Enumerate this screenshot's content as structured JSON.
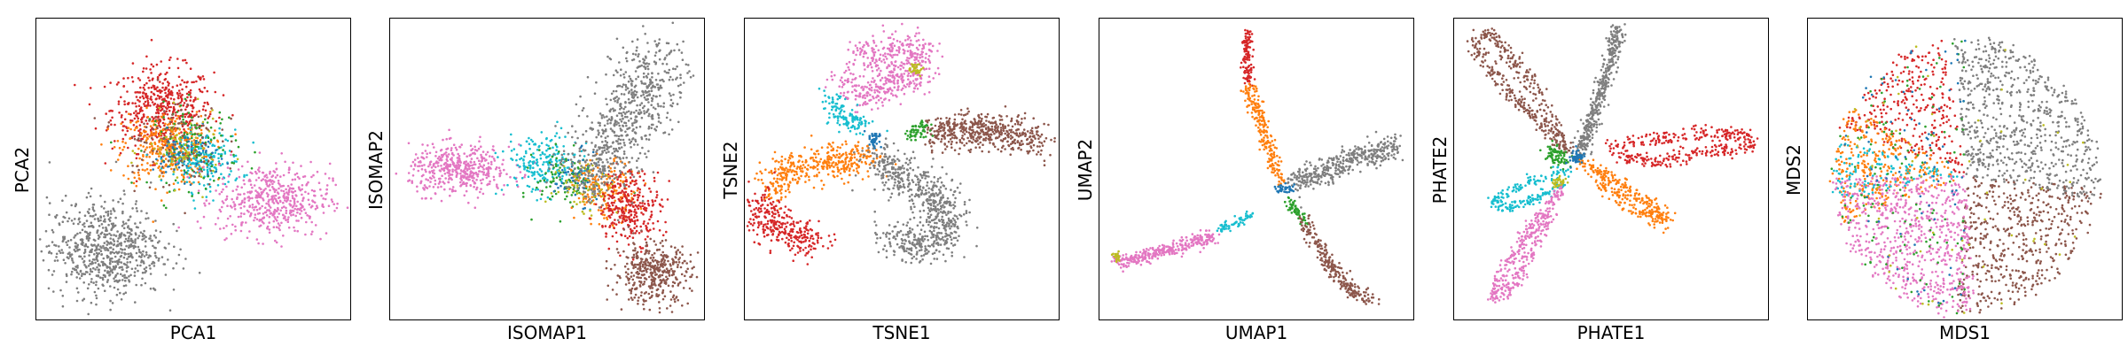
{
  "figure": {
    "panel_count": 6,
    "colors": {
      "blue": "#1f77b4",
      "orange": "#ff7f0e",
      "green": "#2ca02c",
      "red": "#d62728",
      "brown": "#8c564b",
      "pink": "#e377c2",
      "gray": "#7f7f7f",
      "olive": "#bcbd22",
      "cyan": "#17becf"
    }
  },
  "chart_data": [
    {
      "type": "scatter",
      "xlabel": "PCA1",
      "ylabel": "PCA2",
      "grid": false,
      "ticks_visible": false,
      "xlim": [
        0,
        1
      ],
      "ylim": [
        0,
        1
      ],
      "clusters": [
        {
          "color": "red",
          "center": [
            0.4,
            0.7
          ],
          "spread": [
            0.08,
            0.07
          ],
          "count": 500
        },
        {
          "color": "orange",
          "center": [
            0.41,
            0.57
          ],
          "spread": [
            0.07,
            0.06
          ],
          "count": 350
        },
        {
          "color": "cyan",
          "center": [
            0.53,
            0.53
          ],
          "spread": [
            0.06,
            0.05
          ],
          "count": 200
        },
        {
          "color": "green",
          "center": [
            0.5,
            0.58
          ],
          "spread": [
            0.07,
            0.07
          ],
          "count": 120
        },
        {
          "color": "blue",
          "center": [
            0.47,
            0.55
          ],
          "spread": [
            0.05,
            0.04
          ],
          "count": 80
        },
        {
          "color": "olive",
          "center": [
            0.46,
            0.56
          ],
          "spread": [
            0.06,
            0.06
          ],
          "count": 80
        },
        {
          "color": "pink",
          "center": [
            0.75,
            0.4
          ],
          "spread": [
            0.09,
            0.06
          ],
          "count": 500
        },
        {
          "color": "gray",
          "center": [
            0.22,
            0.24
          ],
          "spread": [
            0.09,
            0.08
          ],
          "count": 700
        },
        {
          "color": "brown",
          "center": [
            0.42,
            0.6
          ],
          "spread": [
            0.08,
            0.08
          ],
          "count": 100
        }
      ]
    },
    {
      "type": "scatter",
      "xlabel": "ISOMAP1",
      "ylabel": "ISOMAP2",
      "grid": false,
      "ticks_visible": false,
      "xlim": [
        0,
        1
      ],
      "ylim": [
        0,
        1
      ],
      "clusters": [
        {
          "color": "pink",
          "center": [
            0.22,
            0.5
          ],
          "spread": [
            0.08,
            0.04
          ],
          "count": 450
        },
        {
          "color": "cyan",
          "center": [
            0.48,
            0.52
          ],
          "spread": [
            0.06,
            0.05
          ],
          "count": 200
        },
        {
          "color": "green",
          "center": [
            0.56,
            0.47
          ],
          "spread": [
            0.05,
            0.05
          ],
          "count": 100
        },
        {
          "color": "blue",
          "center": [
            0.6,
            0.47
          ],
          "spread": [
            0.04,
            0.04
          ],
          "count": 70
        },
        {
          "color": "orange",
          "center": [
            0.68,
            0.43
          ],
          "spread": [
            0.05,
            0.05
          ],
          "count": 180
        },
        {
          "color": "red",
          "center": [
            0.76,
            0.38
          ],
          "spread": [
            0.05,
            0.06
          ],
          "count": 300
        },
        {
          "color": "brown",
          "center": [
            0.83,
            0.16
          ],
          "spread": [
            0.06,
            0.05
          ],
          "count": 400
        },
        {
          "color": "olive",
          "center": [
            0.62,
            0.45
          ],
          "spread": [
            0.05,
            0.05
          ],
          "count": 60
        }
      ],
      "arms": [
        {
          "color": "gray",
          "from": [
            0.62,
            0.46
          ],
          "to": [
            0.87,
            0.87
          ],
          "width": 0.06,
          "count": 700
        }
      ]
    },
    {
      "type": "scatter",
      "xlabel": "TSNE1",
      "ylabel": "TSNE2",
      "grid": false,
      "ticks_visible": false,
      "xlim": [
        0,
        1
      ],
      "ylim": [
        0,
        1
      ],
      "arms": [
        {
          "color": "pink",
          "path": [
            [
              0.37,
              0.87
            ],
            [
              0.48,
              0.91
            ],
            [
              0.57,
              0.88
            ],
            [
              0.52,
              0.8
            ],
            [
              0.4,
              0.76
            ],
            [
              0.3,
              0.8
            ]
          ],
          "width": 0.03,
          "count": 500
        },
        {
          "color": "cyan",
          "path": [
            [
              0.28,
              0.74
            ],
            [
              0.3,
              0.68
            ],
            [
              0.38,
              0.64
            ]
          ],
          "width": 0.02,
          "count": 120
        },
        {
          "color": "brown",
          "path": [
            [
              0.6,
              0.62
            ],
            [
              0.74,
              0.63
            ],
            [
              0.86,
              0.62
            ],
            [
              0.93,
              0.59
            ]
          ],
          "width": 0.03,
          "count": 500
        },
        {
          "color": "green",
          "path": [
            [
              0.52,
              0.62
            ],
            [
              0.57,
              0.63
            ]
          ],
          "width": 0.015,
          "count": 60
        },
        {
          "color": "orange",
          "path": [
            [
              0.4,
              0.54
            ],
            [
              0.25,
              0.53
            ],
            [
              0.12,
              0.49
            ],
            [
              0.08,
              0.43
            ]
          ],
          "width": 0.03,
          "count": 400
        },
        {
          "color": "red",
          "path": [
            [
              0.05,
              0.4
            ],
            [
              0.07,
              0.33
            ],
            [
              0.14,
              0.28
            ],
            [
              0.22,
              0.27
            ]
          ],
          "width": 0.03,
          "count": 300
        },
        {
          "color": "gray",
          "path": [
            [
              0.42,
              0.53
            ],
            [
              0.52,
              0.46
            ],
            [
              0.62,
              0.4
            ],
            [
              0.64,
              0.3
            ],
            [
              0.57,
              0.25
            ],
            [
              0.46,
              0.28
            ]
          ],
          "width": 0.035,
          "count": 700
        },
        {
          "color": "blue",
          "path": [
            [
              0.4,
              0.61
            ],
            [
              0.42,
              0.59
            ]
          ],
          "width": 0.01,
          "count": 40
        },
        {
          "color": "olive",
          "path": [
            [
              0.53,
              0.83
            ],
            [
              0.55,
              0.84
            ]
          ],
          "width": 0.01,
          "count": 30
        }
      ]
    },
    {
      "type": "scatter",
      "xlabel": "UMAP1",
      "ylabel": "UMAP2",
      "grid": false,
      "ticks_visible": false,
      "xlim": [
        0,
        1
      ],
      "ylim": [
        0,
        1
      ],
      "arms": [
        {
          "color": "red",
          "path": [
            [
              0.47,
              0.95
            ],
            [
              0.47,
              0.86
            ],
            [
              0.47,
              0.78
            ]
          ],
          "width": 0.008,
          "count": 120
        },
        {
          "color": "orange",
          "path": [
            [
              0.47,
              0.78
            ],
            [
              0.51,
              0.66
            ],
            [
              0.55,
              0.54
            ],
            [
              0.57,
              0.46
            ]
          ],
          "width": 0.012,
          "count": 220
        },
        {
          "color": "gray",
          "path": [
            [
              0.62,
              0.46
            ],
            [
              0.72,
              0.5
            ],
            [
              0.84,
              0.55
            ],
            [
              0.94,
              0.57
            ]
          ],
          "width": 0.02,
          "count": 400
        },
        {
          "color": "blue",
          "path": [
            [
              0.57,
              0.44
            ],
            [
              0.61,
              0.44
            ]
          ],
          "width": 0.008,
          "count": 40
        },
        {
          "color": "green",
          "path": [
            [
              0.6,
              0.4
            ],
            [
              0.65,
              0.33
            ]
          ],
          "width": 0.008,
          "count": 60
        },
        {
          "color": "brown",
          "path": [
            [
              0.65,
              0.33
            ],
            [
              0.72,
              0.2
            ],
            [
              0.8,
              0.1
            ],
            [
              0.86,
              0.07
            ]
          ],
          "width": 0.012,
          "count": 250
        },
        {
          "color": "cyan",
          "path": [
            [
              0.48,
              0.35
            ],
            [
              0.38,
              0.3
            ]
          ],
          "width": 0.008,
          "count": 60
        },
        {
          "color": "pink",
          "path": [
            [
              0.36,
              0.28
            ],
            [
              0.23,
              0.24
            ],
            [
              0.12,
              0.21
            ],
            [
              0.05,
              0.2
            ]
          ],
          "width": 0.012,
          "count": 300
        },
        {
          "color": "olive",
          "path": [
            [
              0.05,
              0.22
            ],
            [
              0.06,
              0.2
            ]
          ],
          "width": 0.006,
          "count": 20
        }
      ]
    },
    {
      "type": "scatter",
      "xlabel": "PHATE1",
      "ylabel": "PHATE2",
      "grid": false,
      "ticks_visible": false,
      "xlim": [
        0,
        1
      ],
      "ylim": [
        0,
        1
      ],
      "arms": [
        {
          "color": "brown",
          "path": [
            [
              0.36,
              0.56
            ],
            [
              0.25,
              0.68
            ],
            [
              0.14,
              0.8
            ],
            [
              0.06,
              0.91
            ],
            [
              0.1,
              0.96
            ],
            [
              0.18,
              0.88
            ],
            [
              0.27,
              0.75
            ],
            [
              0.33,
              0.63
            ],
            [
              0.36,
              0.56
            ]
          ],
          "width": 0.012,
          "count": 400
        },
        {
          "color": "gray",
          "path": [
            [
              0.4,
              0.56
            ],
            [
              0.45,
              0.7
            ],
            [
              0.49,
              0.85
            ],
            [
              0.52,
              0.97
            ]
          ],
          "width": 0.012,
          "count": 400
        },
        {
          "color": "red",
          "path": [
            [
              0.48,
              0.57
            ],
            [
              0.62,
              0.6
            ],
            [
              0.78,
              0.62
            ],
            [
              0.93,
              0.62
            ],
            [
              0.95,
              0.57
            ],
            [
              0.8,
              0.56
            ],
            [
              0.66,
              0.53
            ],
            [
              0.52,
              0.54
            ]
          ],
          "width": 0.012,
          "count": 350
        },
        {
          "color": "orange",
          "path": [
            [
              0.4,
              0.53
            ],
            [
              0.5,
              0.47
            ],
            [
              0.6,
              0.4
            ],
            [
              0.68,
              0.33
            ],
            [
              0.63,
              0.34
            ],
            [
              0.55,
              0.38
            ],
            [
              0.45,
              0.46
            ]
          ],
          "width": 0.012,
          "count": 300
        },
        {
          "color": "cyan",
          "path": [
            [
              0.36,
              0.5
            ],
            [
              0.22,
              0.45
            ],
            [
              0.12,
              0.4
            ],
            [
              0.15,
              0.37
            ],
            [
              0.27,
              0.41
            ],
            [
              0.35,
              0.46
            ]
          ],
          "width": 0.01,
          "count": 200
        },
        {
          "color": "pink",
          "path": [
            [
              0.34,
              0.44
            ],
            [
              0.24,
              0.3
            ],
            [
              0.16,
              0.18
            ],
            [
              0.12,
              0.08
            ],
            [
              0.18,
              0.1
            ],
            [
              0.24,
              0.22
            ],
            [
              0.3,
              0.35
            ]
          ],
          "width": 0.012,
          "count": 350
        },
        {
          "color": "green",
          "path": [
            [
              0.3,
              0.56
            ],
            [
              0.36,
              0.53
            ]
          ],
          "width": 0.015,
          "count": 80
        },
        {
          "color": "blue",
          "path": [
            [
              0.38,
              0.53
            ],
            [
              0.4,
              0.55
            ]
          ],
          "width": 0.01,
          "count": 50
        },
        {
          "color": "olive",
          "path": [
            [
              0.32,
              0.45
            ],
            [
              0.34,
              0.47
            ]
          ],
          "width": 0.01,
          "count": 30
        }
      ]
    },
    {
      "type": "scatter",
      "xlabel": "MDS1",
      "ylabel": "MDS2",
      "grid": false,
      "ticks_visible": false,
      "xlim": [
        0,
        1
      ],
      "ylim": [
        0,
        1
      ],
      "disc": {
        "center": [
          0.5,
          0.48
        ],
        "radius": [
          0.42,
          0.46
        ]
      },
      "sectors": [
        {
          "color": "red",
          "from_deg": 100,
          "to_deg": 160,
          "count": 300
        },
        {
          "color": "orange",
          "from_deg": 150,
          "to_deg": 200,
          "count": 300
        },
        {
          "color": "gray",
          "from_deg": -10,
          "to_deg": 95,
          "count": 700
        },
        {
          "color": "brown",
          "from_deg": -95,
          "to_deg": -5,
          "count": 500
        },
        {
          "color": "pink",
          "from_deg": 180,
          "to_deg": 275,
          "count": 700
        },
        {
          "color": "cyan",
          "from_deg": 165,
          "to_deg": 190,
          "count": 120
        },
        {
          "color": "green",
          "from_deg": 90,
          "to_deg": 270,
          "count": 120
        },
        {
          "color": "blue",
          "from_deg": 90,
          "to_deg": 270,
          "count": 80
        },
        {
          "color": "olive",
          "from_deg": 0,
          "to_deg": 360,
          "count": 60
        }
      ]
    }
  ]
}
